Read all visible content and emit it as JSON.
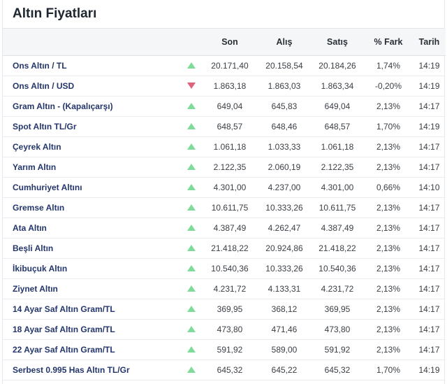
{
  "title": "Altın Fiyatları",
  "columns": [
    "",
    "",
    "Son",
    "Alış",
    "Satış",
    "% Fark",
    "Tarih"
  ],
  "rows": [
    {
      "name": "Ons Altın / TL",
      "trend": "up",
      "son": "20.171,40",
      "alis": "20.158,54",
      "satis": "20.184,26",
      "fark": "1,74%",
      "tarih": "14:19"
    },
    {
      "name": "Ons Altın / USD",
      "trend": "down",
      "son": "1.863,18",
      "alis": "1.863,03",
      "satis": "1.863,34",
      "fark": "-0,20%",
      "tarih": "14:19"
    },
    {
      "name": "Gram Altın - (Kapalıçarşı)",
      "trend": "up",
      "son": "649,04",
      "alis": "645,83",
      "satis": "649,04",
      "fark": "2,13%",
      "tarih": "14:17"
    },
    {
      "name": "Spot Altın TL/Gr",
      "trend": "up",
      "son": "648,57",
      "alis": "648,46",
      "satis": "648,57",
      "fark": "1,70%",
      "tarih": "14:19"
    },
    {
      "name": "Çeyrek Altın",
      "trend": "up",
      "son": "1.061,18",
      "alis": "1.033,33",
      "satis": "1.061,18",
      "fark": "2,13%",
      "tarih": "14:17"
    },
    {
      "name": "Yarım Altın",
      "trend": "up",
      "son": "2.122,35",
      "alis": "2.060,19",
      "satis": "2.122,35",
      "fark": "2,13%",
      "tarih": "14:17"
    },
    {
      "name": "Cumhuriyet Altını",
      "trend": "up",
      "son": "4.301,00",
      "alis": "4.237,00",
      "satis": "4.301,00",
      "fark": "0,66%",
      "tarih": "14:10"
    },
    {
      "name": "Gremse Altın",
      "trend": "up",
      "son": "10.611,75",
      "alis": "10.333,26",
      "satis": "10.611,75",
      "fark": "2,13%",
      "tarih": "14:17"
    },
    {
      "name": "Ata Altın",
      "trend": "up",
      "son": "4.387,49",
      "alis": "4.262,47",
      "satis": "4.387,49",
      "fark": "2,13%",
      "tarih": "14:17"
    },
    {
      "name": "Beşli Altın",
      "trend": "up",
      "son": "21.418,22",
      "alis": "20.924,86",
      "satis": "21.418,22",
      "fark": "2,13%",
      "tarih": "14:17"
    },
    {
      "name": "İkibuçuk Altın",
      "trend": "up",
      "son": "10.540,36",
      "alis": "10.333,26",
      "satis": "10.540,36",
      "fark": "2,13%",
      "tarih": "14:17"
    },
    {
      "name": "Ziynet Altın",
      "trend": "up",
      "son": "4.231,72",
      "alis": "4.133,31",
      "satis": "4.231,72",
      "fark": "2,13%",
      "tarih": "14:17"
    },
    {
      "name": "14 Ayar Saf Altın Gram/TL",
      "trend": "up",
      "son": "369,95",
      "alis": "368,12",
      "satis": "369,95",
      "fark": "2,13%",
      "tarih": "14:17"
    },
    {
      "name": "18 Ayar Saf Altın Gram/TL",
      "trend": "up",
      "son": "473,80",
      "alis": "471,46",
      "satis": "473,80",
      "fark": "2,13%",
      "tarih": "14:17"
    },
    {
      "name": "22 Ayar Saf Altın Gram/TL",
      "trend": "up",
      "son": "591,92",
      "alis": "589,00",
      "satis": "591,92",
      "fark": "2,13%",
      "tarih": "14:17"
    },
    {
      "name": "Serbest 0.995 Has Altın TL/Gr",
      "trend": "up",
      "son": "645,32",
      "alis": "645,22",
      "satis": "645,32",
      "fark": "1,70%",
      "tarih": "14:19"
    }
  ],
  "colors": {
    "up": "#7fdb9a",
    "down": "#e0627a",
    "name_text": "#24366b"
  },
  "icons": {
    "up": "triangle-up-icon",
    "down": "triangle-down-icon"
  }
}
